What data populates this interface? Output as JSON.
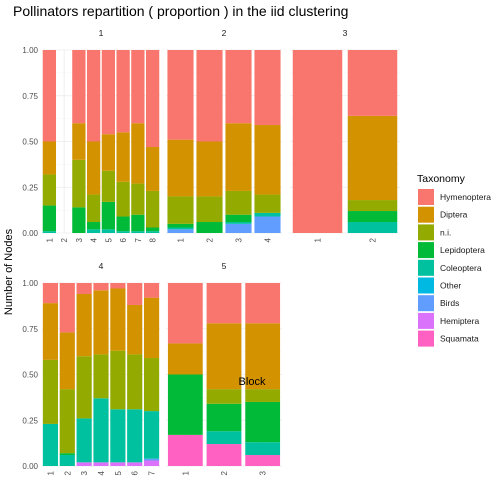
{
  "chart_data": {
    "type": "bar",
    "stacked": true,
    "title": "Pollinators repartition ( proportion ) in the iid clustering",
    "xlabel": "Block",
    "ylabel": "Number of Nodes",
    "ylim": [
      0,
      1
    ],
    "yticks": [
      "0.00",
      "0.25",
      "0.50",
      "0.75",
      "1.00"
    ],
    "grid": true,
    "legend": {
      "title": "Taxonomy",
      "placement": "right",
      "items": [
        {
          "name": "Hymenoptera",
          "color": "#F8766D"
        },
        {
          "name": "Diptera",
          "color": "#D39200"
        },
        {
          "name": "n.i.",
          "color": "#93AA00"
        },
        {
          "name": "Lepidoptera",
          "color": "#00BA38"
        },
        {
          "name": "Coleoptera",
          "color": "#00C19F"
        },
        {
          "name": "Other",
          "color": "#00B9E3"
        },
        {
          "name": "Birds",
          "color": "#619CFF"
        },
        {
          "name": "Hemiptera",
          "color": "#DB72FB"
        },
        {
          "name": "Squamata",
          "color": "#FF61C3"
        }
      ]
    },
    "stack_order": [
      "Squamata",
      "Hemiptera",
      "Birds",
      "Other",
      "Coleoptera",
      "Lepidoptera",
      "n.i.",
      "Diptera",
      "Hymenoptera"
    ],
    "panels": [
      {
        "label": "1",
        "categories": [
          "1",
          "2",
          "3",
          "4",
          "5",
          "6",
          "7",
          "8"
        ],
        "bars": [
          {
            "Coleoptera": 0.01,
            "Lepidoptera": 0.14,
            "n.i.": 0.17,
            "Diptera": 0.18,
            "Hymenoptera": 0.5
          },
          null,
          {
            "Lepidoptera": 0.14,
            "n.i.": 0.26,
            "Diptera": 0.2,
            "Hymenoptera": 0.4
          },
          {
            "Coleoptera": 0.02,
            "Lepidoptera": 0.04,
            "n.i.": 0.15,
            "Diptera": 0.29,
            "Hymenoptera": 0.5
          },
          {
            "Coleoptera": 0.02,
            "Lepidoptera": 0.15,
            "n.i.": 0.17,
            "Diptera": 0.2,
            "Hymenoptera": 0.46
          },
          {
            "Coleoptera": 0.01,
            "Lepidoptera": 0.08,
            "n.i.": 0.19,
            "Diptera": 0.27,
            "Hymenoptera": 0.45
          },
          {
            "Coleoptera": 0.01,
            "Lepidoptera": 0.09,
            "n.i.": 0.17,
            "Diptera": 0.33,
            "Hymenoptera": 0.4
          },
          {
            "Coleoptera": 0.01,
            "Lepidoptera": 0.02,
            "n.i.": 0.2,
            "Diptera": 0.24,
            "Hymenoptera": 0.53
          }
        ]
      },
      {
        "label": "2",
        "categories": [
          "1",
          "2",
          "3",
          "4"
        ],
        "bars": [
          {
            "Coleoptera": 0.01,
            "Birds": 0.02,
            "Lepidoptera": 0.02,
            "n.i.": 0.15,
            "Diptera": 0.31,
            "Hymenoptera": 0.49
          },
          {
            "Lepidoptera": 0.06,
            "n.i.": 0.14,
            "Diptera": 0.3,
            "Hymenoptera": 0.5
          },
          {
            "Birds": 0.05,
            "Coleoptera": 0.01,
            "Lepidoptera": 0.04,
            "n.i.": 0.13,
            "Diptera": 0.37,
            "Hymenoptera": 0.4
          },
          {
            "Birds": 0.09,
            "Coleoptera": 0.02,
            "n.i.": 0.1,
            "Diptera": 0.38,
            "Hymenoptera": 0.41
          }
        ]
      },
      {
        "label": "3",
        "categories": [
          "1",
          "2"
        ],
        "bars": [
          {
            "Hymenoptera": 1.0
          },
          {
            "Coleoptera": 0.06,
            "Lepidoptera": 0.06,
            "n.i.": 0.06,
            "Diptera": 0.46,
            "Hymenoptera": 0.36
          }
        ]
      },
      {
        "label": "4",
        "categories": [
          "1",
          "2",
          "3",
          "4",
          "5",
          "6",
          "7"
        ],
        "bars": [
          {
            "Coleoptera": 0.23,
            "n.i.": 0.35,
            "Diptera": 0.31,
            "Hymenoptera": 0.11
          },
          {
            "Coleoptera": 0.06,
            "Lepidoptera": 0.01,
            "n.i.": 0.35,
            "Diptera": 0.31,
            "Hymenoptera": 0.27
          },
          {
            "Hemiptera": 0.02,
            "Coleoptera": 0.24,
            "n.i.": 0.34,
            "Diptera": 0.34,
            "Hymenoptera": 0.06
          },
          {
            "Hemiptera": 0.02,
            "Coleoptera": 0.35,
            "n.i.": 0.24,
            "Diptera": 0.35,
            "Hymenoptera": 0.04
          },
          {
            "Hemiptera": 0.02,
            "Coleoptera": 0.29,
            "n.i.": 0.32,
            "Diptera": 0.34,
            "Hymenoptera": 0.03
          },
          {
            "Hemiptera": 0.02,
            "Coleoptera": 0.29,
            "n.i.": 0.3,
            "Diptera": 0.27,
            "Hymenoptera": 0.12
          },
          {
            "Birds": 0.01,
            "Hemiptera": 0.03,
            "Coleoptera": 0.26,
            "n.i.": 0.29,
            "Diptera": 0.33,
            "Hymenoptera": 0.08
          }
        ]
      },
      {
        "label": "5",
        "categories": [
          "1",
          "2",
          "3"
        ],
        "bars": [
          {
            "Squamata": 0.17,
            "Lepidoptera": 0.33,
            "Diptera": 0.17,
            "Hymenoptera": 0.33
          },
          {
            "Squamata": 0.12,
            "Coleoptera": 0.07,
            "Lepidoptera": 0.15,
            "n.i.": 0.08,
            "Diptera": 0.36,
            "Hymenoptera": 0.22
          },
          {
            "Squamata": 0.06,
            "Coleoptera": 0.07,
            "Lepidoptera": 0.22,
            "n.i.": 0.07,
            "Diptera": 0.36,
            "Hymenoptera": 0.22
          }
        ]
      }
    ]
  }
}
